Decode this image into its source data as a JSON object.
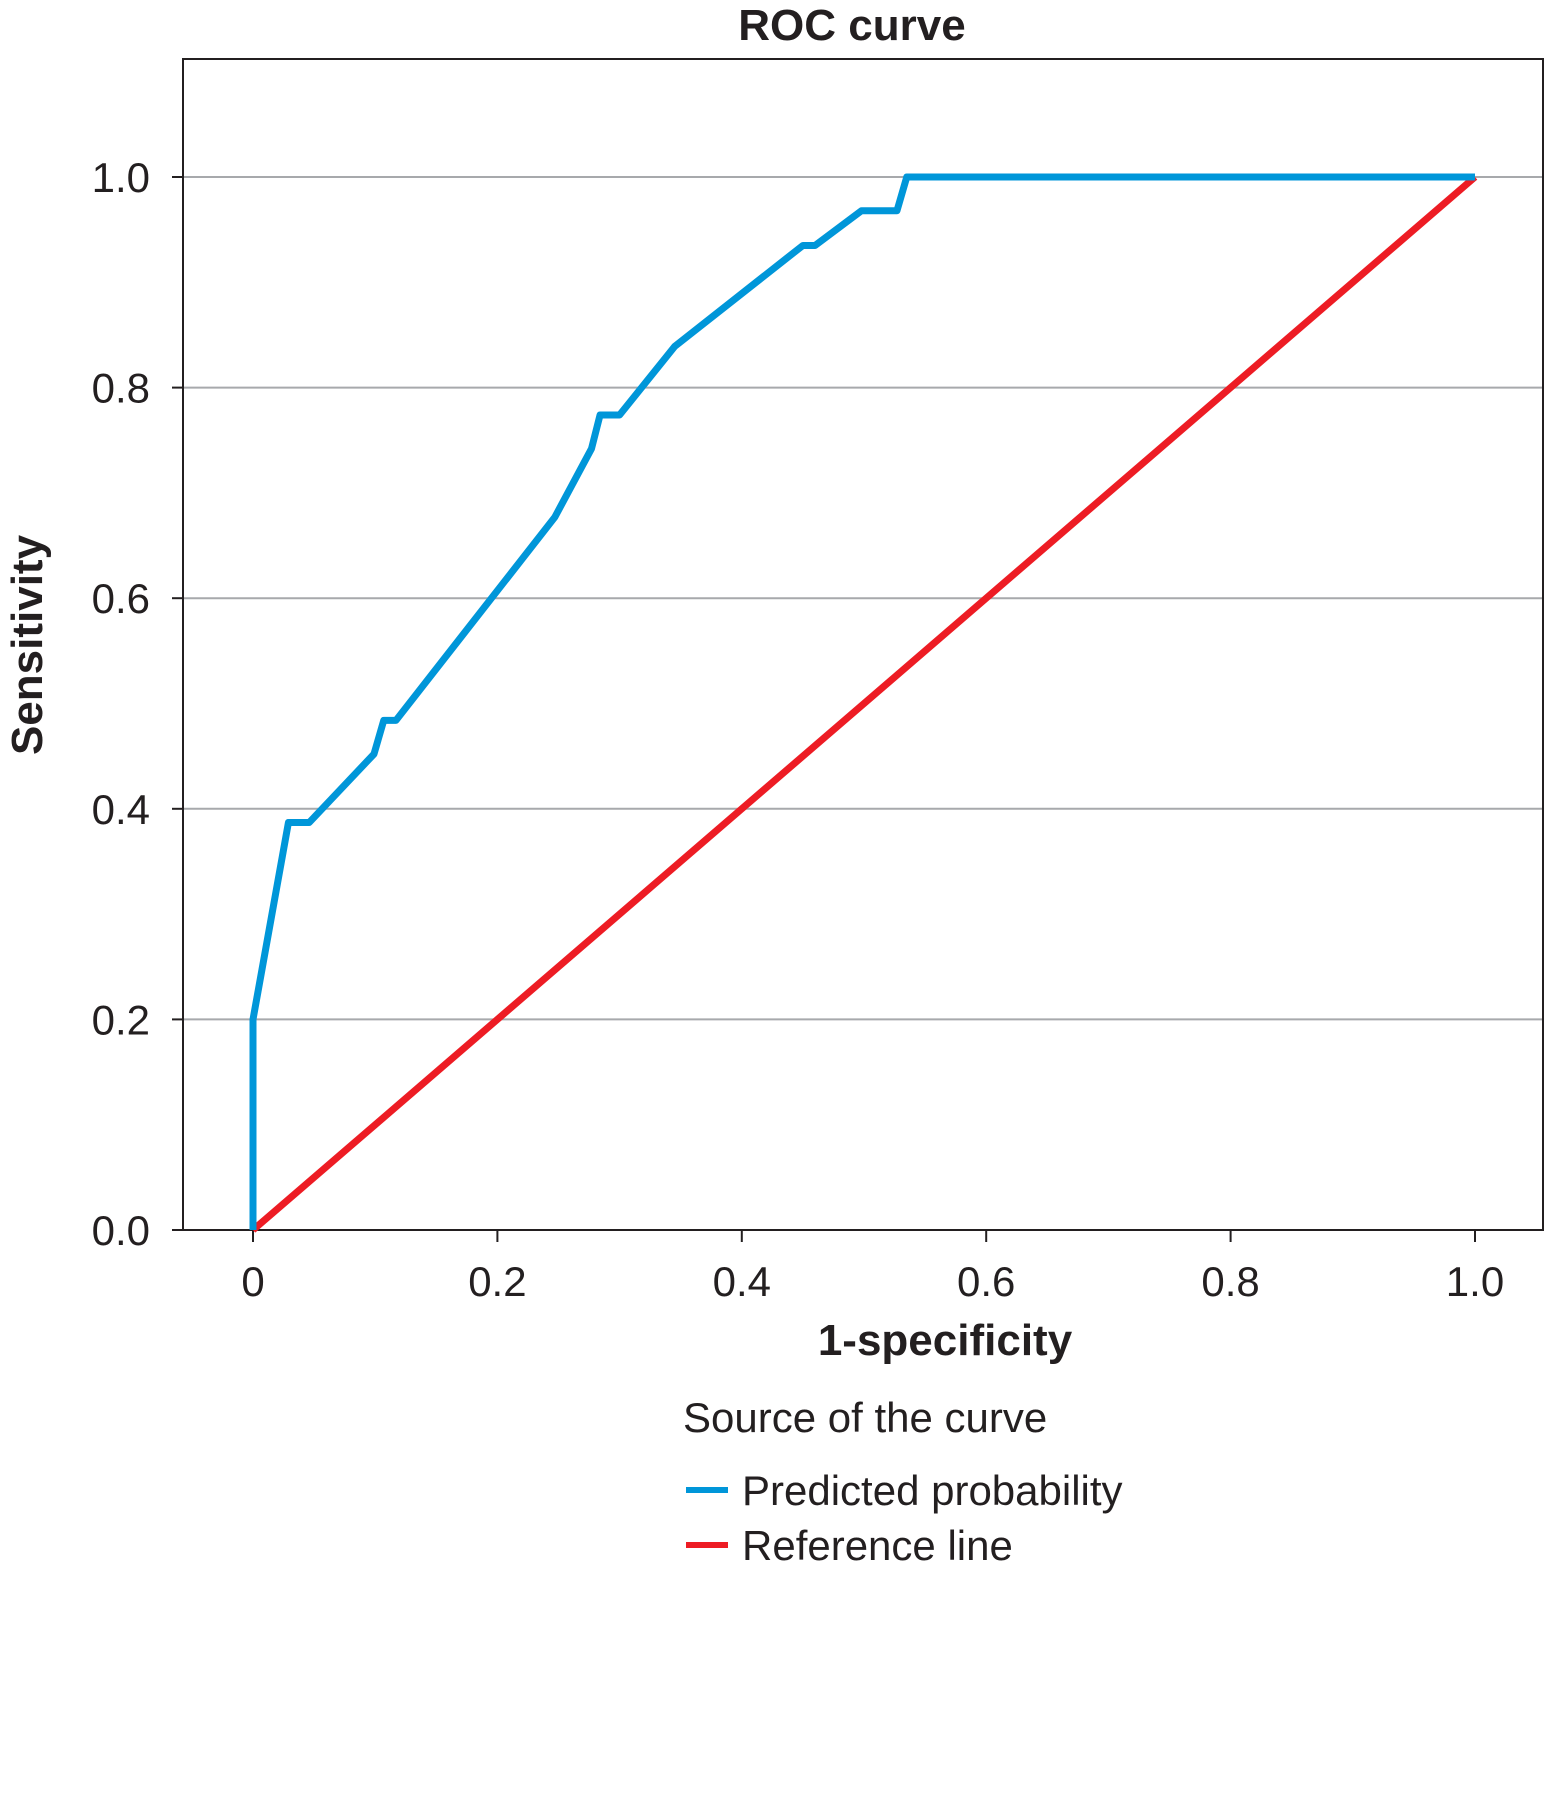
{
  "chart_data": {
    "type": "line",
    "title": "ROC curve",
    "xlabel": "1-specificity",
    "ylabel": "Sensitivity",
    "xlim": [
      -0.06,
      1.06
    ],
    "ylim": [
      0,
      1.11
    ],
    "x_ticks": [
      0,
      0.2,
      0.4,
      0.6,
      0.8,
      1.0
    ],
    "x_tick_labels": [
      "0",
      "0.2",
      "0.4",
      "0.6",
      "0.8",
      "1.0"
    ],
    "y_ticks": [
      0,
      0.2,
      0.4,
      0.6,
      0.8,
      1.0
    ],
    "y_tick_labels": [
      "0.0",
      "0.2",
      "0.4",
      "0.6",
      "0.8",
      "1.0"
    ],
    "grid": "horizontal",
    "legend": {
      "title": "Source of the curve",
      "placement": "bottom"
    },
    "series": [
      {
        "name": "Predicted probability",
        "color": "#0096d9",
        "x": [
          0,
          0,
          0.029,
          0.046,
          0.099,
          0.107,
          0.117,
          0.247,
          0.277,
          0.284,
          0.3,
          0.345,
          0.45,
          0.46,
          0.498,
          0.527,
          0.535,
          1.0
        ],
        "y": [
          0,
          0.2,
          0.387,
          0.387,
          0.452,
          0.484,
          0.484,
          0.677,
          0.742,
          0.774,
          0.774,
          0.839,
          0.935,
          0.935,
          0.968,
          0.968,
          1.0,
          1.0
        ]
      },
      {
        "name": "Reference line",
        "color": "#ed1c24",
        "x": [
          0,
          1
        ],
        "y": [
          0,
          1
        ]
      }
    ]
  }
}
